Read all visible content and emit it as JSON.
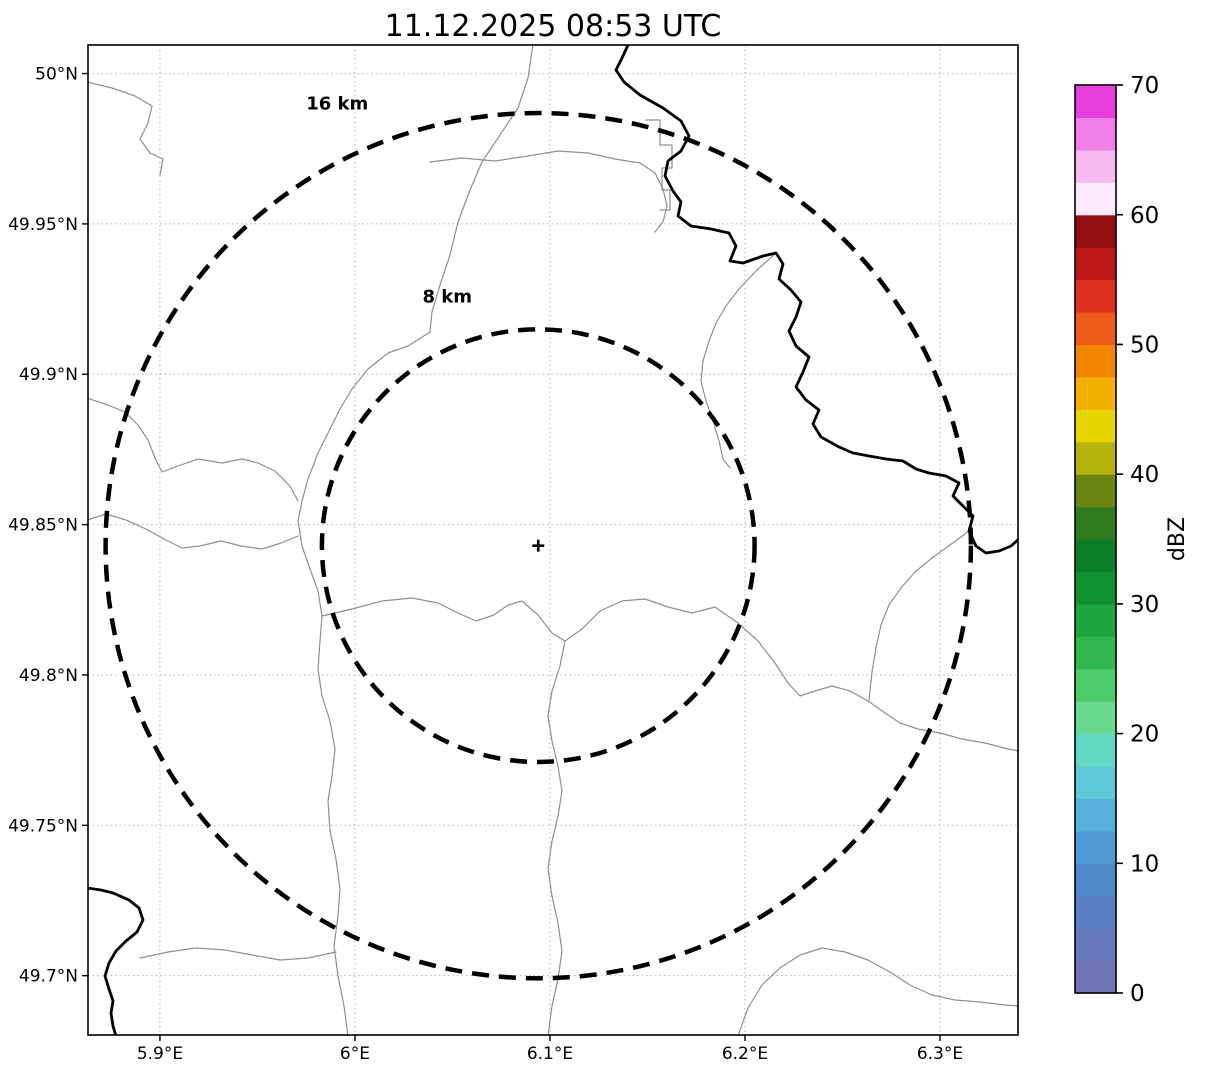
{
  "title": "11.12.2025 08:53 UTC",
  "map": {
    "x_axis": {
      "ticks": [
        {
          "label": "5.9°E",
          "lon": 5.9
        },
        {
          "label": "6°E",
          "lon": 6.0
        },
        {
          "label": "6.1°E",
          "lon": 6.1
        },
        {
          "label": "6.2°E",
          "lon": 6.2
        },
        {
          "label": "6.3°E",
          "lon": 6.3
        }
      ]
    },
    "y_axis": {
      "ticks": [
        {
          "label": "50°N",
          "lat": 50.0
        },
        {
          "label": "49.95°N",
          "lat": 49.95
        },
        {
          "label": "49.9°N",
          "lat": 49.9
        },
        {
          "label": "49.85°N",
          "lat": 49.85
        },
        {
          "label": "49.8°N",
          "lat": 49.8
        },
        {
          "label": "49.75°N",
          "lat": 49.75
        },
        {
          "label": "49.7°N",
          "lat": 49.7
        }
      ]
    },
    "radar_site": {
      "lon": 6.094,
      "lat": 49.843,
      "marker": "+"
    },
    "rings": [
      {
        "label": "16 km",
        "radius_km": 16
      },
      {
        "label": "8 km",
        "radius_km": 8
      }
    ],
    "colors": {
      "ring": "#000000",
      "border": "#000000",
      "boundary": "#8f8f8f",
      "grid": "#b5b5b5"
    }
  },
  "colorbar": {
    "label": "dBZ",
    "min": 0,
    "max": 70,
    "ticks": [
      0,
      10,
      20,
      30,
      40,
      50,
      60,
      70
    ],
    "segment_step_dbz": 2.5,
    "colors_bottom_to_top": [
      "#7173b8",
      "#6878bc",
      "#5c7ec4",
      "#5088cc",
      "#4e9ad6",
      "#58b0dc",
      "#5ec8d8",
      "#63d8c3",
      "#6ad88f",
      "#4ecb6a",
      "#30b84e",
      "#1ca63e",
      "#119232",
      "#0b7e2a",
      "#2f7c1f",
      "#6d8414",
      "#b3b30b",
      "#e8d400",
      "#f4b000",
      "#f28500",
      "#ee5a19",
      "#e03020",
      "#c01818",
      "#940f0f",
      "#fbeafb",
      "#f6baf0",
      "#f080e8",
      "#e83ede"
    ]
  },
  "map_features": {
    "national_borders": [
      "628,45 622,58 616,70 624,82 640,95 663,108 681,121 689,136 681,151 668,161 665,176 673,191 681,202 678,216 691,226 711,229 729,233 736,246 730,261 743,263 763,256 776,253 783,264 779,279 791,290 801,302 796,317 789,331 796,346 809,357 803,372 796,387 806,400 819,410 813,424 821,437 839,447 853,453 869,456 886,459 903,461 916,469 929,473 946,476 959,483 953,496 963,506 973,516 969,531 976,546 986,553 999,551 1011,546 1019,539",
      "87,888 101,890 113,893 129,900 139,908 143,920 137,932 126,941 116,951 109,963 105,976 109,989 113,1001 111,1013 113,1026 116,1036"
    ],
    "regional_boundaries": [
      "533,44 528,78 518,108 498,138 482,162 470,190 458,222 450,255 440,285 432,312 430,332",
      "430,332 408,346 388,353 368,369 352,389 340,409 330,429 318,453 308,479 302,501 298,521 302,546 310,569 318,591 322,616 320,641 318,669 322,696 330,721 335,749 332,776 328,801 330,831 336,859 340,889 338,916 334,946 338,976 344,1006 348,1036",
      "430,162 462,158 495,161 528,156 558,151 588,153 615,159 640,163 655,173 663,189 667,206 663,222 655,232",
      "87,398 108,405 125,412 138,425 148,440 155,458 162,472 178,466 198,459 222,463 242,459 258,463 275,471 290,486 298,501",
      "322,616 352,609 382,601 412,598 438,603 458,613 476,621 494,615 508,605 522,601 538,615 552,633 565,641 582,629 600,611 622,601 645,599 668,607 692,613 715,607 738,623 758,641 775,663 788,683 800,696 815,691 832,686 850,691 868,701 885,713 900,723 918,729 940,733 962,739 985,743 1008,749 1019,751",
      "776,253 756,271 739,289 726,306 716,323 709,341 703,361 701,381 706,401 713,421 719,441 723,459 730,468",
      "87,82 112,88 135,96 152,106 148,123 140,139 150,153 163,159 160,175",
      "646,120 660,120 660,145 672,145 672,168 662,168 662,190 670,190 670,210 660,210",
      "140,958 168,952 196,948 225,950 252,955 280,960 308,958 336,952",
      "738,1036 748,1008 762,985 780,968 800,955 822,948 845,952 868,960 890,972 910,985 932,995 955,1000 980,1002 1005,1005 1019,1006",
      "969,531 950,545 932,558 915,572 901,588 889,605 881,625 876,648 872,672 869,700",
      "565,641 560,666 552,691 548,716 552,741 558,766 562,791 558,816 552,841 548,869 552,896 558,923 562,951 558,979 552,1006 548,1036",
      "87,520 106,514 126,520 146,529 164,539 182,548 200,546 221,541 241,546 262,549 281,543 298,536"
    ]
  },
  "chart_data": {
    "type": "heatmap",
    "title": "11.12.2025 08:53 UTC",
    "xlabel": "",
    "ylabel": "",
    "x_tick_labels": [
      "5.9°E",
      "6°E",
      "6.1°E",
      "6.2°E",
      "6.3°E"
    ],
    "y_tick_labels": [
      "50°N",
      "49.95°N",
      "49.9°N",
      "49.85°N",
      "49.8°N",
      "49.75°N",
      "49.7°N"
    ],
    "xlim": [
      5.862,
      6.34
    ],
    "ylim": [
      49.679,
      50.009
    ],
    "values": [],
    "note": "Radar reflectivity display with no echoes visible; base map with radar site cross and dashed 8 km / 16 km range rings",
    "colorbar": {
      "label": "dBZ",
      "range": [
        0,
        70
      ],
      "ticks": [
        0,
        10,
        20,
        30,
        40,
        50,
        60,
        70
      ]
    },
    "radar_site": {
      "lon": 6.094,
      "lat": 49.843
    },
    "range_rings_km": [
      8,
      16
    ],
    "grid": true,
    "legend": false
  }
}
